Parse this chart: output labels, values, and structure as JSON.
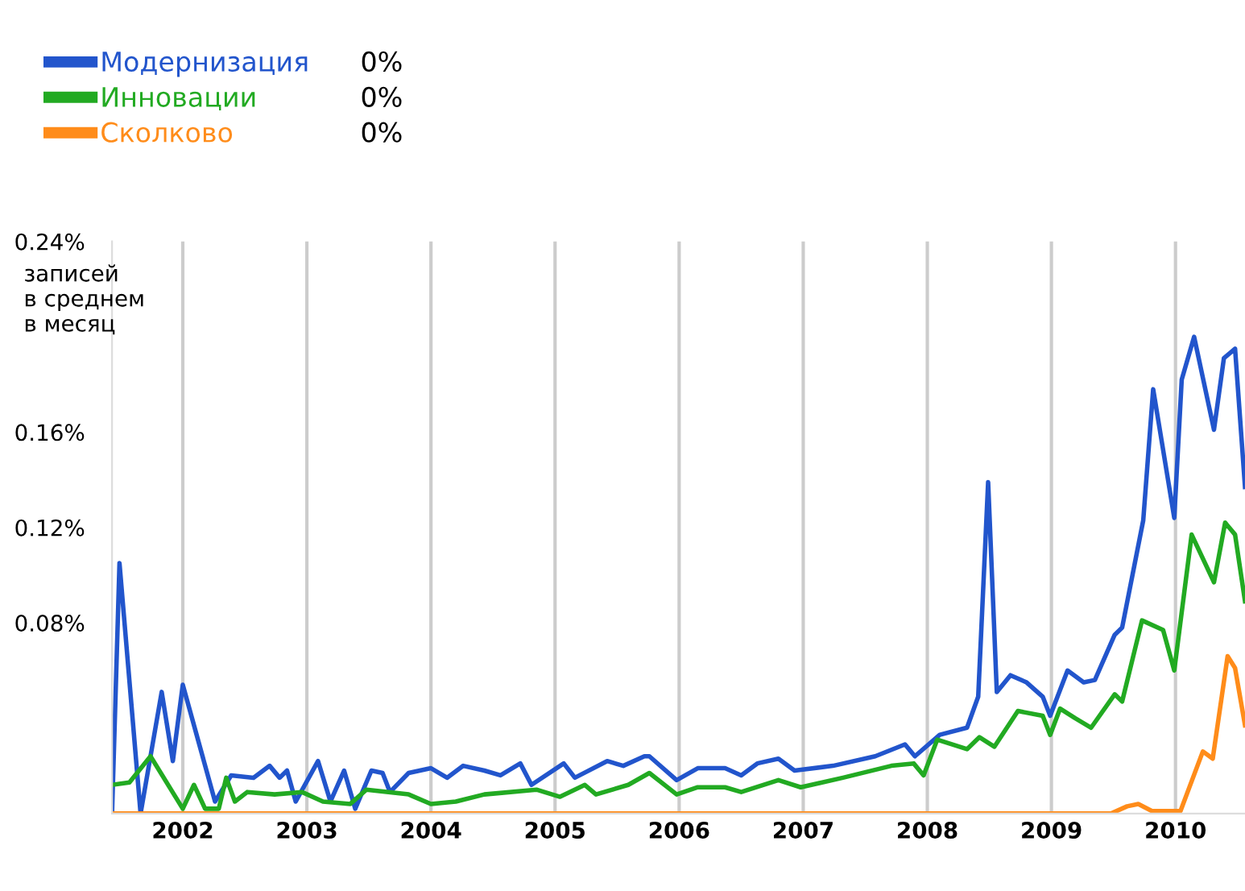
{
  "chart_data": {
    "type": "line",
    "ylabel": "записей\nв среднем\nв месяц",
    "xlim": [
      2001.43,
      2010.56
    ],
    "xticks": [
      2002,
      2003,
      2004,
      2005,
      2006,
      2007,
      2008,
      2009,
      2010
    ],
    "ylim": [
      0,
      0.24
    ],
    "yticks": [
      {
        "value": 0.08,
        "label": "0.08%"
      },
      {
        "value": 0.12,
        "label": "0.12%"
      },
      {
        "value": 0.16,
        "label": "0.16%"
      },
      {
        "value": 0.24,
        "label": "0.24%"
      }
    ],
    "grid": "x",
    "legend": "top left",
    "marker": "none",
    "line_style": "solid",
    "annotations": [
      "0%",
      "0%",
      "0%"
    ],
    "series": [
      {
        "name": "Модернизация",
        "color": "#2255cc",
        "x": [
          2001.43,
          2001.49,
          2001.66,
          2001.83,
          2001.92,
          2002.0,
          2002.26,
          2002.39,
          2002.57,
          2002.7,
          2002.78,
          2002.84,
          2002.91,
          2003.09,
          2003.19,
          2003.3,
          2003.39,
          2003.52,
          2003.61,
          2003.67,
          2003.82,
          2004.0,
          2004.13,
          2004.26,
          2004.43,
          2004.56,
          2004.72,
          2004.81,
          2005.07,
          2005.16,
          2005.42,
          2005.55,
          2005.72,
          2005.76,
          2005.98,
          2006.15,
          2006.37,
          2006.5,
          2006.63,
          2006.8,
          2006.93,
          2007.24,
          2007.58,
          2007.82,
          2007.9,
          2008.1,
          2008.32,
          2008.41,
          2008.49,
          2008.56,
          2008.67,
          2008.8,
          2008.93,
          2008.99,
          2009.13,
          2009.26,
          2009.35,
          2009.51,
          2009.57,
          2009.74,
          2009.82,
          2009.99,
          2010.05,
          2010.15,
          2010.31,
          2010.39,
          2010.48,
          2010.56
        ],
        "values": [
          0,
          0.105,
          0,
          0.051,
          0.022,
          0.054,
          0.005,
          0.016,
          0.015,
          0.02,
          0.015,
          0.018,
          0.005,
          0.022,
          0.005,
          0.018,
          0.002,
          0.018,
          0.017,
          0.009,
          0.017,
          0.019,
          0.015,
          0.02,
          0.018,
          0.016,
          0.021,
          0.012,
          0.021,
          0.015,
          0.022,
          0.02,
          0.024,
          0.024,
          0.014,
          0.019,
          0.019,
          0.016,
          0.021,
          0.023,
          0.018,
          0.02,
          0.024,
          0.029,
          0.024,
          0.033,
          0.036,
          0.049,
          0.139,
          0.051,
          0.058,
          0.055,
          0.049,
          0.041,
          0.06,
          0.055,
          0.056,
          0.075,
          0.078,
          0.123,
          0.178,
          0.124,
          0.182,
          0.2,
          0.161,
          0.191,
          0.195,
          0.137
        ]
      },
      {
        "name": "Инновации",
        "color": "#22aa22",
        "x": [
          2001.43,
          2001.57,
          2001.74,
          2002.0,
          2002.09,
          2002.18,
          2002.29,
          2002.35,
          2002.42,
          2002.52,
          2002.74,
          2002.96,
          2003.13,
          2003.35,
          2003.48,
          2003.82,
          2004.0,
          2004.2,
          2004.43,
          2004.85,
          2005.04,
          2005.24,
          2005.33,
          2005.59,
          2005.76,
          2005.98,
          2006.15,
          2006.37,
          2006.5,
          2006.8,
          2006.98,
          2007.32,
          2007.71,
          2007.89,
          2007.97,
          2008.08,
          2008.32,
          2008.42,
          2008.54,
          2008.73,
          2008.93,
          2008.99,
          2009.07,
          2009.19,
          2009.32,
          2009.51,
          2009.57,
          2009.73,
          2009.9,
          2009.99,
          2010.13,
          2010.31,
          2010.4,
          2010.48,
          2010.56
        ],
        "values": [
          0.012,
          0.013,
          0.024,
          0.002,
          0.012,
          0.002,
          0.002,
          0.015,
          0.005,
          0.009,
          0.008,
          0.009,
          0.005,
          0.004,
          0.01,
          0.008,
          0.004,
          0.005,
          0.008,
          0.01,
          0.007,
          0.012,
          0.008,
          0.012,
          0.017,
          0.008,
          0.011,
          0.011,
          0.009,
          0.014,
          0.011,
          0.015,
          0.02,
          0.021,
          0.016,
          0.031,
          0.027,
          0.032,
          0.028,
          0.043,
          0.041,
          0.033,
          0.044,
          0.04,
          0.036,
          0.05,
          0.047,
          0.081,
          0.077,
          0.06,
          0.117,
          0.097,
          0.122,
          0.117,
          0.089
        ]
      },
      {
        "name": "Сколково",
        "color": "#ff8c1a",
        "x": [
          2001.43,
          2009.48,
          2009.61,
          2009.7,
          2009.81,
          2010.04,
          2010.22,
          2010.3,
          2010.42,
          2010.48,
          2010.56
        ],
        "values": [
          0,
          0,
          0.003,
          0.004,
          0.001,
          0.001,
          0.026,
          0.023,
          0.066,
          0.061,
          0.037
        ]
      }
    ]
  }
}
